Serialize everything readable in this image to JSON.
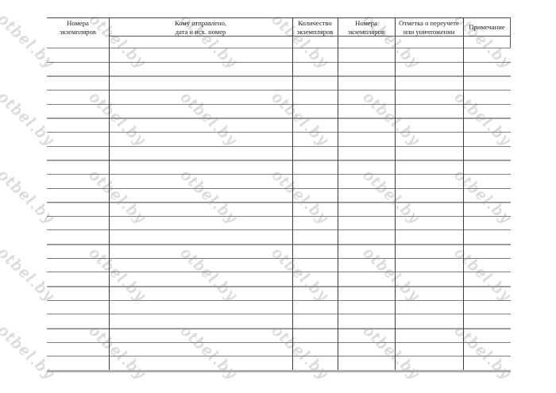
{
  "page": {
    "background": "#ffffff"
  },
  "watermark": {
    "text": "otbel.by",
    "color": "#d9d9d9"
  },
  "table": {
    "columns": [
      {
        "label": "Номера\nэкземпляров"
      },
      {
        "label": "Кому отправлено,\nдата и исх. номер"
      },
      {
        "label": "Количество\nэкземпляров"
      },
      {
        "label": "Номера\nэкземпляров"
      },
      {
        "label": "Отметка о переучете\nили уничтожении"
      },
      {
        "label": "Примечание"
      }
    ],
    "empty_row_count": 24,
    "rows": []
  }
}
